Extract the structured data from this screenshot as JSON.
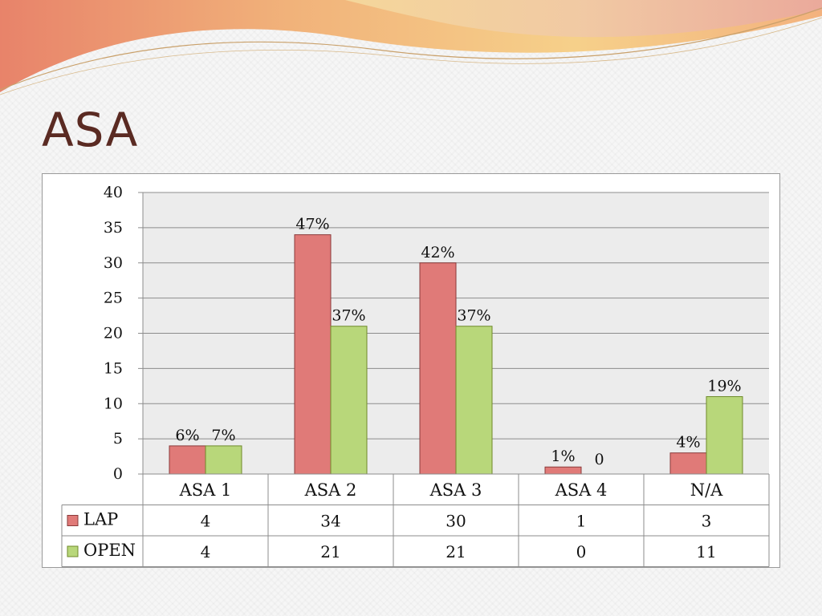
{
  "slide": {
    "title": "ASA"
  },
  "colors": {
    "lap": "#e07a78",
    "open": "#b8d77a",
    "lap_stroke": "#8a3a3a",
    "open_stroke": "#6f8a2a",
    "title": "#5a2a22"
  },
  "chart_data": {
    "type": "bar",
    "title": "",
    "xlabel": "",
    "ylabel": "",
    "ylim": [
      0,
      40
    ],
    "yticks": [
      "0",
      "5",
      "10",
      "15",
      "20",
      "25",
      "30",
      "35",
      "40"
    ],
    "categories": [
      "ASA 1",
      "ASA 2",
      "ASA 3",
      "ASA 4",
      "N/A"
    ],
    "grid": true,
    "legend": "data-table-left",
    "series": [
      {
        "name": "LAP",
        "values": [
          4,
          34,
          30,
          1,
          3
        ],
        "labels": [
          "6%",
          "47%",
          "42%",
          "1%",
          "4%"
        ],
        "table": [
          "4",
          "34",
          "30",
          "1",
          "3"
        ]
      },
      {
        "name": "OPEN",
        "values": [
          4,
          21,
          21,
          0,
          11
        ],
        "labels": [
          "7%",
          "37%",
          "37%",
          "0",
          "19%"
        ],
        "table": [
          "4",
          "21",
          "21",
          "0",
          "11"
        ]
      }
    ]
  }
}
